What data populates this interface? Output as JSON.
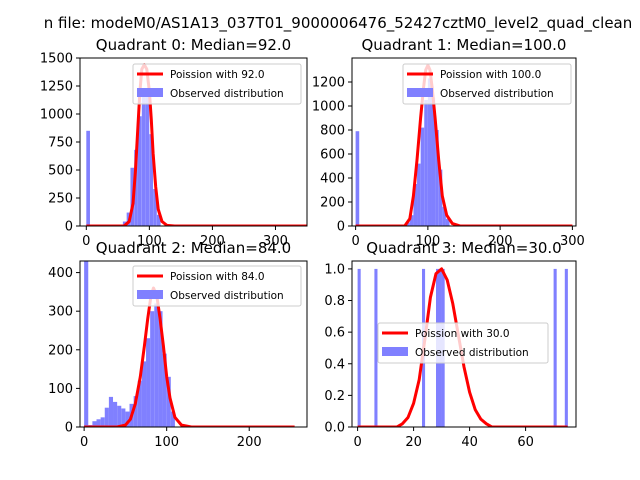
{
  "figure": {
    "suptitle": "n file: modeM0/AS1A13_037T01_9000006476_52427cztM0_level2_quad_clean"
  },
  "colors": {
    "poisson_line": "#ff0000",
    "observed_bar": "#8080ff",
    "axis": "#000000",
    "background": "#ffffff"
  },
  "chart_data": [
    {
      "type": "bar",
      "title": "Quadrant 0: Median=92.0",
      "xlim": [
        -10,
        350
      ],
      "ylim": [
        0,
        1500
      ],
      "xticks": [
        0,
        100,
        200,
        300
      ],
      "yticks": [
        0,
        250,
        500,
        750,
        1000,
        1250,
        1500
      ],
      "legend_position": "top-right",
      "poisson": {
        "label": "Poission with 92.0",
        "x": [
          0,
          60,
          68,
          74,
          78,
          82,
          85,
          88,
          92,
          96,
          100,
          103,
          106,
          110,
          114,
          120,
          128,
          140,
          350
        ],
        "y": [
          0,
          0,
          40,
          200,
          500,
          900,
          1200,
          1400,
          1440,
          1400,
          1200,
          950,
          650,
          350,
          150,
          40,
          5,
          0,
          0
        ]
      },
      "observed": {
        "label": "Observed distribution",
        "bin_width": 5.8,
        "x": [
          0,
          58,
          64,
          70,
          76,
          82,
          88,
          94,
          100,
          106,
          112
        ],
        "y": [
          850,
          40,
          120,
          520,
          680,
          980,
          1230,
          1210,
          820,
          330,
          100
        ]
      }
    },
    {
      "type": "bar",
      "title": "Quadrant 1: Median=100.0",
      "xlim": [
        -5,
        305
      ],
      "ylim": [
        0,
        1400
      ],
      "xticks": [
        0,
        100,
        200,
        300
      ],
      "yticks": [
        0,
        200,
        400,
        600,
        800,
        1000,
        1200
      ],
      "legend_position": "top-right",
      "poisson": {
        "label": "Poission with 100.0",
        "x": [
          0,
          68,
          75,
          80,
          85,
          90,
          94,
          97,
          100,
          103,
          106,
          110,
          115,
          120,
          126,
          134,
          145,
          300
        ],
        "y": [
          0,
          0,
          60,
          250,
          550,
          900,
          1150,
          1300,
          1340,
          1300,
          1150,
          900,
          550,
          250,
          90,
          20,
          0,
          0
        ]
      },
      "observed": {
        "label": "Observed distribution",
        "bin_width": 5.0,
        "x": [
          0,
          70,
          75,
          80,
          85,
          90,
          95,
          100,
          105,
          110,
          115,
          120,
          125
        ],
        "y": [
          790,
          30,
          90,
          350,
          520,
          820,
          1050,
          1230,
          1070,
          800,
          470,
          160,
          60
        ]
      }
    },
    {
      "type": "bar",
      "title": "Quadrant 2: Median=84.0",
      "xlim": [
        -5,
        270
      ],
      "ylim": [
        0,
        430
      ],
      "xticks": [
        0,
        100,
        200
      ],
      "yticks": [
        0,
        100,
        200,
        300,
        400
      ],
      "legend_position": "top-right",
      "poisson": {
        "label": "Poission with 84.0",
        "x": [
          0,
          40,
          50,
          56,
          62,
          68,
          73,
          77,
          81,
          84,
          88,
          92,
          96,
          100,
          104,
          110,
          118,
          130,
          255
        ],
        "y": [
          0,
          0,
          5,
          20,
          60,
          130,
          210,
          280,
          340,
          360,
          340,
          280,
          210,
          130,
          75,
          25,
          5,
          0,
          0
        ]
      },
      "observed": {
        "label": "Observed distribution",
        "bin_width": 5.0,
        "x": [
          0,
          5,
          10,
          15,
          20,
          25,
          30,
          35,
          40,
          45,
          50,
          55,
          60,
          65,
          70,
          75,
          80,
          85,
          90,
          95,
          100,
          105
        ],
        "y": [
          430,
          5,
          15,
          20,
          25,
          50,
          78,
          65,
          55,
          48,
          40,
          60,
          80,
          120,
          170,
          230,
          300,
          320,
          300,
          190,
          130,
          40
        ]
      }
    },
    {
      "type": "bar",
      "title": "Quadrant 3: Median=30.0",
      "xlim": [
        -2,
        78
      ],
      "ylim": [
        0,
        1.05
      ],
      "xticks": [
        0,
        20,
        40,
        60
      ],
      "yticks": [
        0,
        0.2,
        0.4,
        0.6,
        0.8,
        1.0
      ],
      "legend_position": "center",
      "poisson": {
        "label": "Poission with 30.0",
        "x": [
          0,
          14,
          16,
          18,
          20,
          22,
          24,
          26,
          28,
          30,
          32,
          34,
          36,
          38,
          40,
          42,
          44,
          46,
          48,
          75
        ],
        "y": [
          0,
          0,
          0.02,
          0.06,
          0.15,
          0.3,
          0.55,
          0.82,
          0.97,
          1.0,
          0.93,
          0.78,
          0.58,
          0.38,
          0.22,
          0.11,
          0.05,
          0.02,
          0,
          0
        ]
      },
      "observed": {
        "label": "Observed distribution",
        "bin_width": 1.1,
        "x": [
          0,
          6,
          23,
          28,
          29,
          30,
          70,
          74
        ],
        "y": [
          1.0,
          1.0,
          1.0,
          1.0,
          1.0,
          1.0,
          1.0,
          1.0
        ]
      }
    }
  ]
}
